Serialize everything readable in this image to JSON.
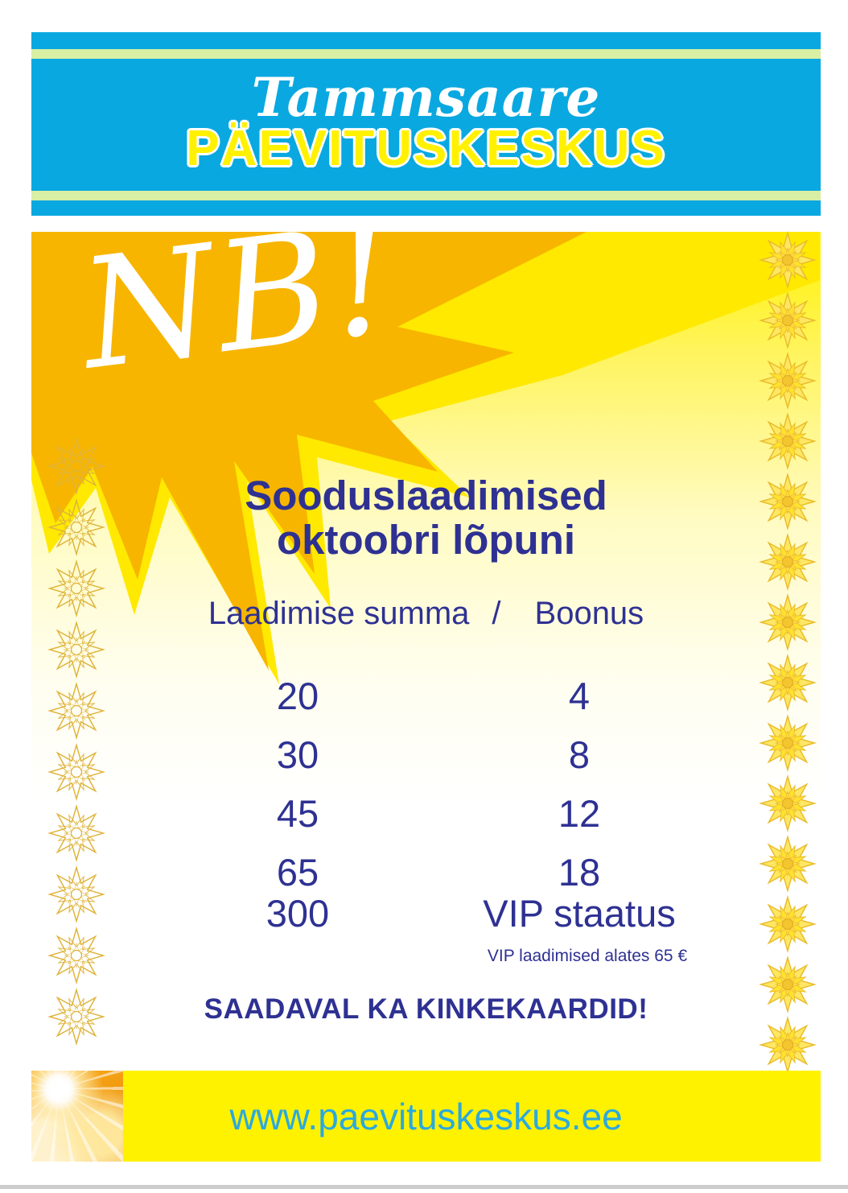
{
  "brand": {
    "script_name": "Tammsaare",
    "center_name": "PÄEVITUSKESKUS"
  },
  "badge": {
    "text": "NB!"
  },
  "promo": {
    "title_line1": "Sooduslaadimised",
    "title_line2": "oktoobri lõpuni"
  },
  "table": {
    "col_left": "Laadimise summa",
    "separator": "/",
    "col_right": "Boonus",
    "rows": [
      {
        "sum": "20",
        "bonus": "4"
      },
      {
        "sum": "30",
        "bonus": "8"
      },
      {
        "sum": "45",
        "bonus": "12"
      },
      {
        "sum": "65",
        "bonus": "18"
      },
      {
        "sum": "300",
        "bonus": "VIP staatus"
      }
    ],
    "vip_note": "VIP laadimised alates 65 €"
  },
  "gift": {
    "text": "SAADAVAL KA KINKEKAARDID!"
  },
  "footer": {
    "url": "www.paevituskeskus.ee"
  },
  "colors": {
    "header_blue": "#09A8E0",
    "header_stripe": "#D9EFA4",
    "brand_yellow": "#FFF100",
    "navy_text": "#2E3192",
    "gold_star": "#F7B500",
    "bright_star": "#FFE900",
    "footer_yellow": "#FFF200",
    "url_blue": "#2BA9DE",
    "ornament_gold": "#DFB43C"
  }
}
